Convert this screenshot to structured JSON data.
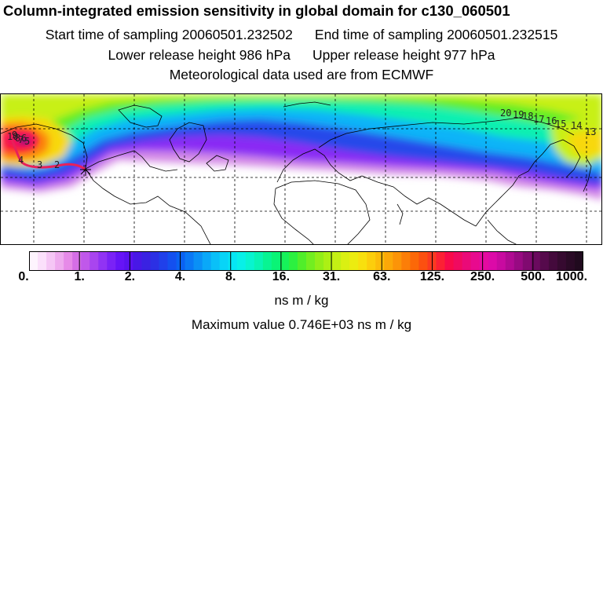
{
  "header": {
    "title": "Column-integrated emission sensitivity in global domain for c130_060501",
    "start_label": "Start time of sampling 20060501.232502",
    "end_label": "End time of sampling 20060501.232515",
    "lower_label": "Lower release height  986 hPa",
    "upper_label": "Upper release height  977 hPa",
    "met_label": "Meteorological data used are from ECMWF"
  },
  "map": {
    "trajectory_labels": {
      "left": [
        "10",
        "9",
        "8",
        "7",
        "6",
        "5",
        "4",
        "3",
        "2"
      ],
      "right": [
        "20",
        "19",
        "18",
        "17",
        "16",
        "15",
        "14",
        "13"
      ]
    },
    "release_marker": "release-point-star"
  },
  "colorbar": {
    "tick_labels": [
      "0.",
      "1.",
      "2.",
      "4.",
      "8.",
      "16.",
      "31.",
      "63.",
      "125.",
      "250.",
      "500.",
      "1000."
    ],
    "colors": [
      "#fef4fe",
      "#fbe0fb",
      "#f5c6f5",
      "#eeaaee",
      "#e68ae8",
      "#d56ee6",
      "#c058ea",
      "#a945ef",
      "#9133f4",
      "#7a22f6",
      "#6614f7",
      "#5a12f0",
      "#4818e6",
      "#3a22e2",
      "#2c30e4",
      "#2040ea",
      "#1450ef",
      "#0a62f2",
      "#0a78f5",
      "#0a90f6",
      "#0aa8f8",
      "#0ac0f8",
      "#08d4f7",
      "#06e6f4",
      "#08f0e8",
      "#08f4d0",
      "#08f4b4",
      "#08f492",
      "#0af476",
      "#16f25a",
      "#2cf040",
      "#50ee2a",
      "#72ee20",
      "#92ee18",
      "#acf014",
      "#c4f014",
      "#daf012",
      "#ecec10",
      "#f8e00e",
      "#fcce0c",
      "#fcbc0a",
      "#fca808",
      "#fc9408",
      "#fc7e08",
      "#fc6808",
      "#fc5010",
      "#fc3a20",
      "#fc2034",
      "#f80a4a",
      "#f00a60",
      "#ea0a78",
      "#e80a8e",
      "#e40aa0",
      "#dc0aa8",
      "#c80aa0",
      "#b00a92",
      "#980a82",
      "#800a70",
      "#6a0a5e",
      "#560a4c",
      "#440a3c",
      "#360a30",
      "#2a0a26",
      "#200a1e"
    ],
    "units": "ns m / kg",
    "max_label": "Maximum value  0.746E+03 ns m / kg"
  }
}
